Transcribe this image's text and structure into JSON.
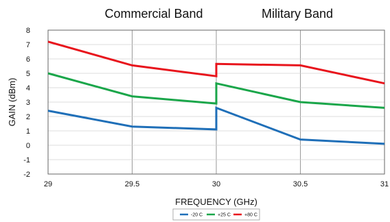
{
  "chart_data": {
    "type": "line",
    "band_labels": [
      "Commercial Band",
      "Military Band"
    ],
    "xlabel": "FREQUENCY (GHz)",
    "ylabel": "GAIN (dBm)",
    "xlim": [
      29,
      31
    ],
    "ylim": [
      -2,
      8
    ],
    "x_ticks": [
      "29",
      "29.5",
      "30",
      "30.5",
      "31"
    ],
    "y_ticks": [
      "8",
      "7",
      "6",
      "5",
      "4",
      "3",
      "2",
      "1",
      "0",
      "-1",
      "-2"
    ],
    "grid": true,
    "legend_position": "bottom-center",
    "series": [
      {
        "name": "-20 C",
        "color": "#1f6fb8",
        "x": [
          29,
          29.5,
          30,
          30,
          30.5,
          31
        ],
        "y": [
          2.4,
          1.3,
          1.1,
          2.6,
          0.4,
          0.1
        ]
      },
      {
        "name": "+25 C",
        "color": "#1aa64a",
        "x": [
          29,
          29.5,
          30,
          30,
          30.5,
          31
        ],
        "y": [
          5.0,
          3.4,
          2.9,
          4.3,
          3.0,
          2.6
        ]
      },
      {
        "name": "+80 C",
        "color": "#e8141c",
        "x": [
          29,
          29.5,
          30,
          30,
          30.5,
          31
        ],
        "y": [
          7.2,
          5.55,
          4.8,
          5.65,
          5.55,
          4.3
        ]
      }
    ]
  }
}
